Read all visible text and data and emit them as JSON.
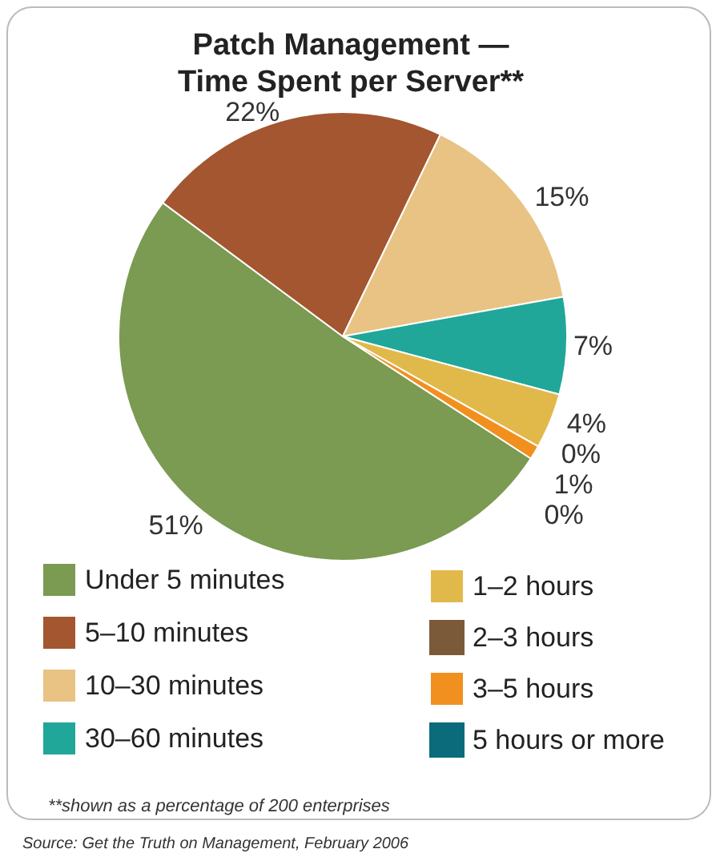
{
  "chart_data": {
    "type": "pie",
    "title": "Patch Management —\nTime Spent per Server**",
    "categories": [
      "Under 5 minutes",
      "5–10 minutes",
      "10–30 minutes",
      "30–60 minutes",
      "1–2 hours",
      "2–3 hours",
      "3–5 hours",
      "5 hours or more"
    ],
    "values": [
      51,
      22,
      15,
      7,
      4,
      0,
      1,
      0
    ],
    "colors": [
      "#7b9a52",
      "#a3562f",
      "#e8c383",
      "#20a799",
      "#e1b94b",
      "#7b5a3a",
      "#f1901f",
      "#0b6b7b"
    ],
    "value_labels": [
      "51%",
      "22%",
      "15%",
      "7%",
      "4%",
      "0%",
      "1%",
      "0%"
    ],
    "legend": "bottom",
    "annotations": [
      "**shown as a percentage of 200 enterprises",
      "Source: Get the Truth on Management, February 2006"
    ]
  }
}
